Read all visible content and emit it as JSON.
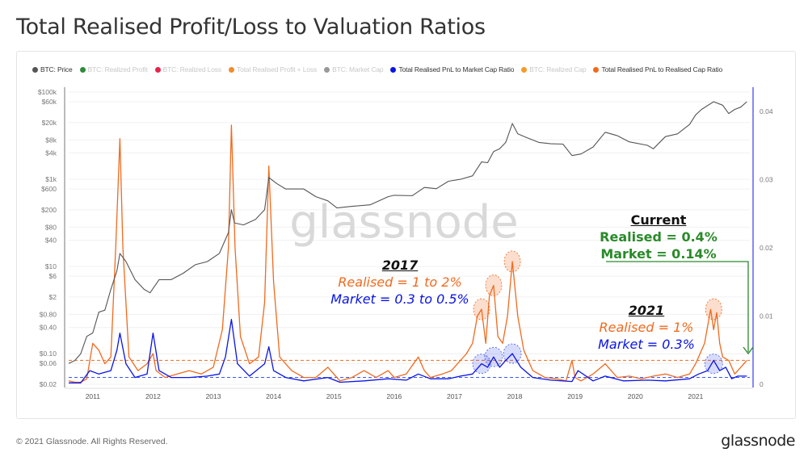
{
  "title": "Total Realised Profit/Loss to Valuation Ratios",
  "footer": "© 2021 Glassnode. All Rights Reserved.",
  "brand": "glassnode",
  "watermark": "glassnode",
  "legend": [
    {
      "label": "BTC: Price",
      "color": "#555555",
      "active": true
    },
    {
      "label": "BTC: Realized Profit",
      "color": "#2e8b3a",
      "active": false
    },
    {
      "label": "BTC: Realized Loss",
      "color": "#e8234a",
      "active": false
    },
    {
      "label": "Total Realised Profit + Loss",
      "color": "#f08c2e",
      "active": false
    },
    {
      "label": "BTC: Market Cap",
      "color": "#999999",
      "active": false
    },
    {
      "label": "Total Realised PnL to Market Cap Ratio",
      "color": "#0a14e6",
      "active": true
    },
    {
      "label": "BTC: Realized Cap",
      "color": "#f59a2c",
      "active": false
    },
    {
      "label": "Total Realised PnL to Realised Cap Ratio",
      "color": "#f06a1e",
      "active": true
    }
  ],
  "annotations": {
    "y2017": {
      "heading": "2017",
      "realised": "Realised = 1 to 2%",
      "market": "Market = 0.3 to 0.5%"
    },
    "y2021": {
      "heading": "2021",
      "realised": "Realised = 1%",
      "market": "Market = 0.3%"
    },
    "current": {
      "heading": "Current",
      "realised": "Realised = 0.4%",
      "market": "Market = 0.14%"
    }
  },
  "chart_data": {
    "type": "line",
    "title": "Total Realised Profit/Loss to Valuation Ratios",
    "x_ticks": [
      "2011",
      "2012",
      "2013",
      "2014",
      "2015",
      "2016",
      "2017",
      "2018",
      "2019",
      "2020",
      "2021"
    ],
    "xlim": [
      2010.6,
      2021.9
    ],
    "y_left": {
      "scale": "log",
      "ticks": [
        "$100k",
        "$60k",
        "$20k",
        "$8k",
        "$4k",
        "$1k",
        "$600",
        "$200",
        "$80",
        "$40",
        "$10",
        "$6",
        "$2",
        "$0.80",
        "$0.40",
        "$0.10",
        "$0.06",
        "$0.02"
      ],
      "tick_values": [
        100000,
        60000,
        20000,
        8000,
        4000,
        1000,
        600,
        200,
        80,
        40,
        10,
        6,
        2,
        0.8,
        0.4,
        0.1,
        0.06,
        0.02
      ],
      "range": [
        0.02,
        100000
      ]
    },
    "y_right": {
      "ticks": [
        "0.04",
        "0.03",
        "0.02",
        "0.01",
        "0"
      ],
      "tick_values": [
        0.04,
        0.03,
        0.02,
        0.01,
        0
      ],
      "range": [
        0,
        0.04
      ]
    },
    "reference_lines": [
      {
        "series": "Total Realised PnL to Realised Cap Ratio",
        "value": 0.0035,
        "style": "dashed"
      },
      {
        "series": "Total Realised PnL to Market Cap Ratio",
        "value": 0.001,
        "style": "dashed"
      }
    ],
    "series": [
      {
        "name": "BTC: Price",
        "axis": "left",
        "color": "#555555",
        "x": [
          2010.6,
          2010.7,
          2010.8,
          2010.9,
          2011.0,
          2011.1,
          2011.2,
          2011.3,
          2011.4,
          2011.45,
          2011.55,
          2011.7,
          2011.85,
          2011.95,
          2012.1,
          2012.3,
          2012.5,
          2012.7,
          2012.9,
          2013.1,
          2013.25,
          2013.3,
          2013.35,
          2013.5,
          2013.7,
          2013.85,
          2013.92,
          2014.05,
          2014.2,
          2014.5,
          2014.7,
          2014.9,
          2015.05,
          2015.3,
          2015.6,
          2015.9,
          2016.0,
          2016.3,
          2016.5,
          2016.7,
          2016.9,
          2017.1,
          2017.3,
          2017.45,
          2017.55,
          2017.65,
          2017.75,
          2017.85,
          2017.96,
          2018.05,
          2018.2,
          2018.4,
          2018.6,
          2018.8,
          2018.95,
          2019.1,
          2019.3,
          2019.5,
          2019.7,
          2019.9,
          2020.2,
          2020.3,
          2020.5,
          2020.7,
          2020.9,
          2021.0,
          2021.1,
          2021.3,
          2021.45,
          2021.55,
          2021.65,
          2021.75,
          2021.85
        ],
        "values": [
          0.06,
          0.07,
          0.1,
          0.25,
          0.3,
          0.9,
          1,
          3,
          8,
          20,
          13,
          5,
          3,
          2.5,
          5,
          5,
          7,
          11,
          13,
          20,
          60,
          200,
          100,
          90,
          120,
          200,
          1100,
          800,
          600,
          600,
          400,
          320,
          220,
          240,
          260,
          400,
          430,
          420,
          650,
          610,
          900,
          1000,
          1200,
          2500,
          2400,
          4300,
          5000,
          7000,
          19000,
          11000,
          9000,
          7000,
          6500,
          6400,
          3500,
          3800,
          5500,
          12000,
          10000,
          7200,
          6000,
          5000,
          9500,
          11000,
          18000,
          30000,
          40000,
          60000,
          50000,
          32000,
          40000,
          45000,
          60000
        ]
      },
      {
        "name": "Total Realised PnL to Realised Cap Ratio",
        "axis": "right",
        "color": "#f06a1e",
        "x": [
          2010.6,
          2010.7,
          2010.8,
          2010.9,
          2011.0,
          2011.1,
          2011.2,
          2011.3,
          2011.38,
          2011.45,
          2011.5,
          2011.6,
          2011.75,
          2011.9,
          2012.0,
          2012.05,
          2012.2,
          2012.4,
          2012.6,
          2012.8,
          2013.0,
          2013.15,
          2013.25,
          2013.3,
          2013.36,
          2013.45,
          2013.6,
          2013.75,
          2013.85,
          2013.92,
          2014.0,
          2014.1,
          2014.3,
          2014.5,
          2014.7,
          2014.9,
          2015.1,
          2015.3,
          2015.5,
          2015.7,
          2015.9,
          2016.0,
          2016.2,
          2016.4,
          2016.5,
          2016.6,
          2016.8,
          2016.95,
          2017.05,
          2017.2,
          2017.3,
          2017.38,
          2017.45,
          2017.52,
          2017.58,
          2017.65,
          2017.72,
          2017.8,
          2017.88,
          2017.96,
          2018.05,
          2018.15,
          2018.3,
          2018.5,
          2018.7,
          2018.85,
          2018.95,
          2019.0,
          2019.1,
          2019.3,
          2019.5,
          2019.6,
          2019.7,
          2019.9,
          2020.1,
          2020.3,
          2020.5,
          2020.7,
          2020.9,
          2021.0,
          2021.15,
          2021.25,
          2021.3,
          2021.35,
          2021.4,
          2021.45,
          2021.55,
          2021.65,
          2021.75,
          2021.85
        ],
        "values": [
          0.0005,
          0.0003,
          0.0003,
          0.0008,
          0.006,
          0.005,
          0.003,
          0.004,
          0.02,
          0.036,
          0.02,
          0.004,
          0.002,
          0.003,
          0.0045,
          0.002,
          0.001,
          0.0015,
          0.002,
          0.0015,
          0.0025,
          0.008,
          0.02,
          0.038,
          0.02,
          0.007,
          0.003,
          0.004,
          0.012,
          0.032,
          0.015,
          0.004,
          0.002,
          0.001,
          0.001,
          0.0025,
          0.0005,
          0.001,
          0.002,
          0.001,
          0.002,
          0.001,
          0.0015,
          0.004,
          0.002,
          0.001,
          0.0015,
          0.002,
          0.003,
          0.0045,
          0.006,
          0.01,
          0.011,
          0.006,
          0.013,
          0.0145,
          0.007,
          0.006,
          0.01,
          0.018,
          0.01,
          0.005,
          0.002,
          0.001,
          0.0008,
          0.0005,
          0.0035,
          0.001,
          0.0005,
          0.0015,
          0.003,
          0.002,
          0.001,
          0.0012,
          0.0008,
          0.0012,
          0.0015,
          0.001,
          0.0015,
          0.003,
          0.006,
          0.011,
          0.008,
          0.0105,
          0.006,
          0.004,
          0.0035,
          0.0015,
          0.0025,
          0.0035
        ]
      },
      {
        "name": "Total Realised PnL to Market Cap Ratio",
        "axis": "right",
        "color": "#0a14e6",
        "x": [
          2010.6,
          2010.8,
          2010.95,
          2011.1,
          2011.3,
          2011.4,
          2011.45,
          2011.55,
          2011.7,
          2011.9,
          2012.0,
          2012.1,
          2012.3,
          2012.6,
          2012.9,
          2013.1,
          2013.2,
          2013.3,
          2013.4,
          2013.6,
          2013.85,
          2013.92,
          2014.0,
          2014.2,
          2014.5,
          2014.9,
          2015.1,
          2015.5,
          2015.9,
          2016.2,
          2016.4,
          2016.6,
          2016.9,
          2017.1,
          2017.3,
          2017.45,
          2017.55,
          2017.65,
          2017.75,
          2017.85,
          2017.96,
          2018.1,
          2018.3,
          2018.6,
          2018.95,
          2019.05,
          2019.3,
          2019.5,
          2019.8,
          2020.2,
          2020.5,
          2020.9,
          2021.05,
          2021.2,
          2021.3,
          2021.4,
          2021.5,
          2021.6,
          2021.7,
          2021.85
        ],
        "values": [
          0.0002,
          0.0002,
          0.002,
          0.0015,
          0.002,
          0.005,
          0.0075,
          0.003,
          0.001,
          0.0015,
          0.0075,
          0.002,
          0.001,
          0.001,
          0.0012,
          0.0015,
          0.004,
          0.0095,
          0.003,
          0.0012,
          0.003,
          0.0055,
          0.002,
          0.001,
          0.0005,
          0.001,
          0.0003,
          0.0005,
          0.0008,
          0.0006,
          0.0015,
          0.0008,
          0.0008,
          0.0012,
          0.0015,
          0.003,
          0.0025,
          0.004,
          0.0025,
          0.0035,
          0.0045,
          0.0025,
          0.001,
          0.0006,
          0.0004,
          0.002,
          0.0005,
          0.0012,
          0.0005,
          0.0006,
          0.0005,
          0.0008,
          0.0015,
          0.002,
          0.0035,
          0.002,
          0.0025,
          0.0008,
          0.0012,
          0.0012
        ]
      }
    ]
  }
}
